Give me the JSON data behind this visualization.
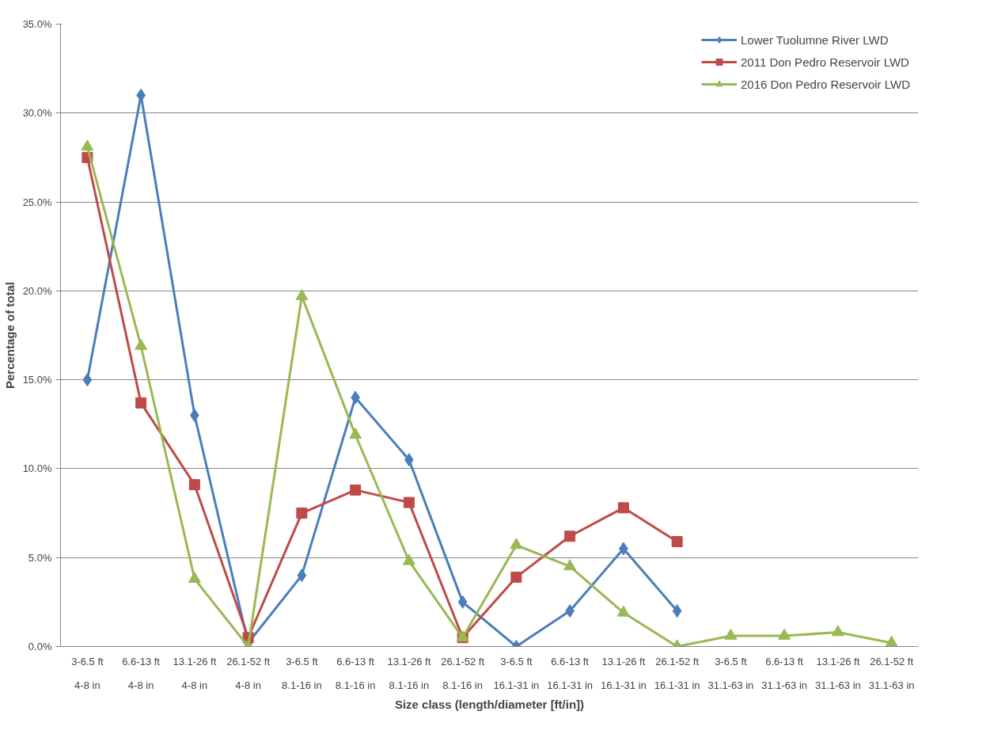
{
  "chart_data": {
    "type": "line",
    "xlabel": "Size class (length/diameter [ft/in])",
    "ylabel": "Percentage of total",
    "categories": [
      "3-6.5 ft\n4-8 in",
      "6.6-13 ft\n4-8 in",
      "13.1-26 ft\n4-8 in",
      "26.1-52 ft\n4-8 in",
      "3-6.5 ft\n8.1-16 in",
      "6.6-13 ft\n8.1-16 in",
      "13.1-26 ft\n8.1-16 in",
      "26.1-52 ft\n8.1-16 in",
      "3-6.5 ft\n16.1-31 in",
      "6.6-13 ft\n16.1-31 in",
      "13.1-26 ft\n16.1-31 in",
      "26.1-52 ft\n16.1-31 in",
      "3-6.5 ft\n31.1-63 in",
      "6.6-13 ft\n31.1-63 in",
      "13.1-26 ft\n31.1-63 in",
      "26.1-52 ft\n31.1-63 in"
    ],
    "series": [
      {
        "name": "Lower Tuolumne River LWD",
        "color": "#4a7ebb",
        "marker": "diamond",
        "values": [
          15.0,
          31.0,
          13.0,
          0.2,
          4.0,
          14.0,
          10.5,
          2.5,
          0.0,
          2.0,
          5.5,
          2.0,
          null,
          null,
          null,
          null
        ]
      },
      {
        "name": "2011 Don Pedro Reservoir LWD",
        "color": "#be4b48",
        "marker": "square",
        "values": [
          27.5,
          13.7,
          9.1,
          0.5,
          7.5,
          8.8,
          8.1,
          0.5,
          3.9,
          6.2,
          7.8,
          5.9,
          null,
          null,
          null,
          null
        ]
      },
      {
        "name": "2016 Don Pedro Reservoir LWD",
        "color": "#98b954",
        "marker": "triangle",
        "values": [
          28.1,
          16.9,
          3.8,
          0.0,
          19.7,
          11.9,
          4.8,
          0.5,
          5.7,
          4.5,
          1.9,
          0.0,
          0.6,
          0.6,
          0.8,
          0.2
        ]
      }
    ],
    "ylim": [
      0,
      35
    ],
    "yticks": [
      {
        "value": 0,
        "label": "0.0%"
      },
      {
        "value": 5,
        "label": "5.0%"
      },
      {
        "value": 10,
        "label": "10.0%"
      },
      {
        "value": 15,
        "label": "15.0%"
      },
      {
        "value": 20,
        "label": "20.0%"
      },
      {
        "value": 25,
        "label": "25.0%"
      },
      {
        "value": 30,
        "label": "30.0%"
      },
      {
        "value": 35,
        "label": "35.0%"
      }
    ],
    "grid": "y",
    "legend": "top right",
    "line_style": "solid"
  }
}
